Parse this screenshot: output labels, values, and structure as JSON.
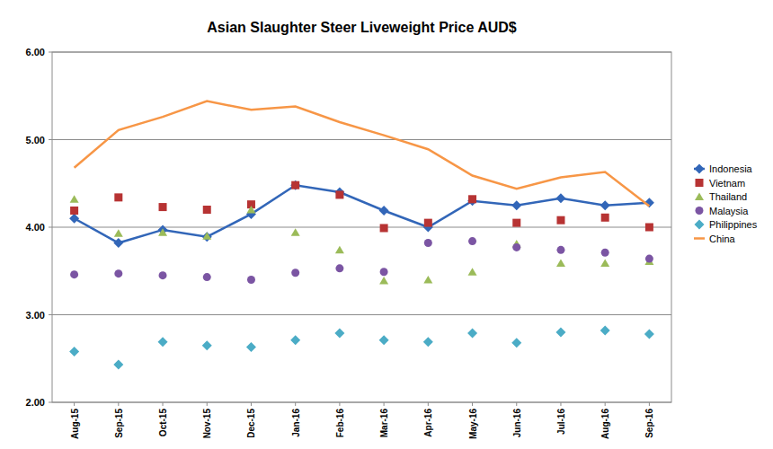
{
  "chart_data": {
    "type": "line",
    "title": "Asian Slaughter Steer Liveweight Price AUD$",
    "categories": [
      "Aug-15",
      "Sep-15",
      "Oct-15",
      "Nov-15",
      "Dec-15",
      "Jan-16",
      "Feb-16",
      "Mar-16",
      "Apr-16",
      "May-16",
      "Jun-16",
      "Jul-16",
      "Aug-16",
      "Sep-16"
    ],
    "ylim": [
      2,
      6
    ],
    "yticks": [
      {
        "value": 2,
        "label": "2.00"
      },
      {
        "value": 3,
        "label": "3.00"
      },
      {
        "value": 4,
        "label": "4.00"
      },
      {
        "value": 5,
        "label": "5.00"
      },
      {
        "value": 6,
        "label": "6.00"
      }
    ],
    "grid": true,
    "legend": "right",
    "series": [
      {
        "name": "Indonesia",
        "color": "#3266b8",
        "marker": "diamond",
        "line_style": "solid",
        "values": [
          4.1,
          3.82,
          3.97,
          3.89,
          4.15,
          4.48,
          4.4,
          4.19,
          4.0,
          4.3,
          4.25,
          4.33,
          4.25,
          4.28
        ]
      },
      {
        "name": "Vietnam",
        "color": "#b73333",
        "marker": "square",
        "line_style": "none",
        "values": [
          4.19,
          4.34,
          4.23,
          4.2,
          4.26,
          4.48,
          4.37,
          3.99,
          4.05,
          4.32,
          4.05,
          4.08,
          4.11,
          4.0
        ]
      },
      {
        "name": "Thailand",
        "color": "#9bbb59",
        "marker": "triangle",
        "line_style": "none",
        "values": [
          4.32,
          3.93,
          3.94,
          3.9,
          4.2,
          3.94,
          3.74,
          3.39,
          3.4,
          3.49,
          3.81,
          3.59,
          3.59,
          3.61
        ]
      },
      {
        "name": "Malaysia",
        "color": "#7b55a3",
        "marker": "circle",
        "line_style": "none",
        "values": [
          3.46,
          3.47,
          3.45,
          3.43,
          3.4,
          3.48,
          3.53,
          3.49,
          3.82,
          3.84,
          3.77,
          3.74,
          3.71,
          3.64
        ]
      },
      {
        "name": "Philippines",
        "color": "#4bacc6",
        "marker": "diamond",
        "line_style": "none",
        "values": [
          2.58,
          2.43,
          2.69,
          2.65,
          2.63,
          2.71,
          2.79,
          2.71,
          2.69,
          2.79,
          2.68,
          2.8,
          2.82,
          2.78
        ]
      },
      {
        "name": "China",
        "color": "#f79646",
        "marker": "none",
        "line_style": "solid",
        "values": [
          4.68,
          5.11,
          5.26,
          5.44,
          5.34,
          5.38,
          5.2,
          5.05,
          4.89,
          4.59,
          4.44,
          4.57,
          4.63,
          4.24
        ]
      }
    ]
  }
}
